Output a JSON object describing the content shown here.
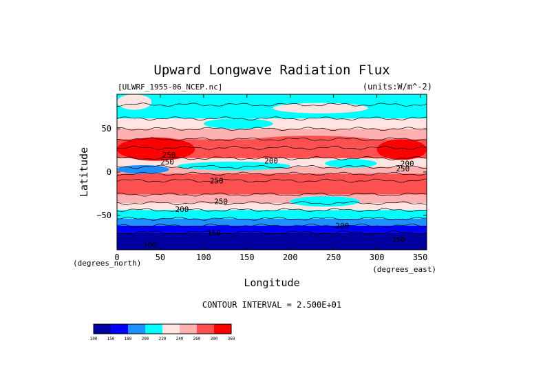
{
  "chart_data": {
    "type": "heatmap",
    "title": "Upward Longwave Radiation Flux",
    "file_label": "[ULWRF_1955-06_NCEP.nc]",
    "units_label": "(units:W/m^-2)",
    "xlabel": "Longitude",
    "ylabel": "Latitude",
    "x_unit_label": "(degrees_east)",
    "y_unit_label": "(degrees_north)",
    "xlim": [
      0,
      357.5
    ],
    "ylim": [
      -90,
      90
    ],
    "x_ticks": [
      0,
      50,
      100,
      150,
      200,
      250,
      300,
      350
    ],
    "y_ticks": [
      50,
      0,
      -50
    ],
    "contour_interval_text": "CONTOUR INTERVAL = 2.500E+01",
    "contour_labels": [
      {
        "text": "250",
        "lon": 60,
        "lat": 20
      },
      {
        "text": "250",
        "lon": 58,
        "lat": 12
      },
      {
        "text": "200",
        "lon": 178,
        "lat": 13
      },
      {
        "text": "200",
        "lon": 335,
        "lat": 10
      },
      {
        "text": "250",
        "lon": 330,
        "lat": 4
      },
      {
        "text": "250",
        "lon": 115,
        "lat": -10
      },
      {
        "text": "250",
        "lon": 120,
        "lat": -34
      },
      {
        "text": "200",
        "lon": 75,
        "lat": -43
      },
      {
        "text": "200",
        "lon": 260,
        "lat": -62
      },
      {
        "text": "150",
        "lon": 112,
        "lat": -70
      },
      {
        "text": "150",
        "lon": 325,
        "lat": -78
      },
      {
        "text": "100",
        "lon": 38,
        "lat": -84
      }
    ],
    "colorbar": {
      "levels": [
        "100",
        "150",
        "180",
        "200",
        "220",
        "240",
        "260",
        "300",
        "360"
      ],
      "colors": [
        "#0000a0",
        "#0000ff",
        "#1e90ff",
        "#00ffff",
        "#ffe4e1",
        "#ffb0b0",
        "#ff5050",
        "#ff0000"
      ]
    },
    "zonal_bands": [
      {
        "lat_from": 90,
        "lat_to": 78,
        "value": 210
      },
      {
        "lat_from": 78,
        "lat_to": 62,
        "value": 215
      },
      {
        "lat_from": 62,
        "lat_to": 50,
        "value": 230
      },
      {
        "lat_from": 50,
        "lat_to": 38,
        "value": 245
      },
      {
        "lat_from": 38,
        "lat_to": 28,
        "value": 265
      },
      {
        "lat_from": 28,
        "lat_to": 16,
        "value": 275
      },
      {
        "lat_from": 16,
        "lat_to": 6,
        "value": 225
      },
      {
        "lat_from": 6,
        "lat_to": -2,
        "value": 245
      },
      {
        "lat_from": -2,
        "lat_to": -10,
        "value": 270
      },
      {
        "lat_from": -10,
        "lat_to": -26,
        "value": 275
      },
      {
        "lat_from": -26,
        "lat_to": -36,
        "value": 250
      },
      {
        "lat_from": -36,
        "lat_to": -44,
        "value": 225
      },
      {
        "lat_from": -44,
        "lat_to": -54,
        "value": 210
      },
      {
        "lat_from": -54,
        "lat_to": -62,
        "value": 195
      },
      {
        "lat_from": -62,
        "lat_to": -70,
        "value": 170
      },
      {
        "lat_from": -70,
        "lat_to": -90,
        "value": 130
      }
    ],
    "regional_patches": [
      {
        "lon": [
          0,
          90
        ],
        "lat": [
          40,
          13
        ],
        "value": 310
      },
      {
        "lon": [
          300,
          357.5
        ],
        "lat": [
          38,
          14
        ],
        "value": 300
      },
      {
        "lon": [
          150,
          300
        ],
        "lat": [
          42,
          28
        ],
        "value": 280
      },
      {
        "lon": [
          0,
          60
        ],
        "lat": [
          8,
          -2
        ],
        "value": 195
      },
      {
        "lon": [
          70,
          200
        ],
        "lat": [
          12,
          2
        ],
        "value": 200
      },
      {
        "lon": [
          240,
          300
        ],
        "lat": [
          15,
          5
        ],
        "value": 205
      },
      {
        "lon": [
          0,
          40
        ],
        "lat": [
          90,
          72
        ],
        "value": 235
      },
      {
        "lon": [
          100,
          180
        ],
        "lat": [
          62,
          50
        ],
        "value": 215
      },
      {
        "lon": [
          200,
          280
        ],
        "lat": [
          -28,
          -40
        ],
        "value": 215
      },
      {
        "lon": [
          180,
          290
        ],
        "lat": [
          80,
          68
        ],
        "value": 230
      }
    ]
  }
}
